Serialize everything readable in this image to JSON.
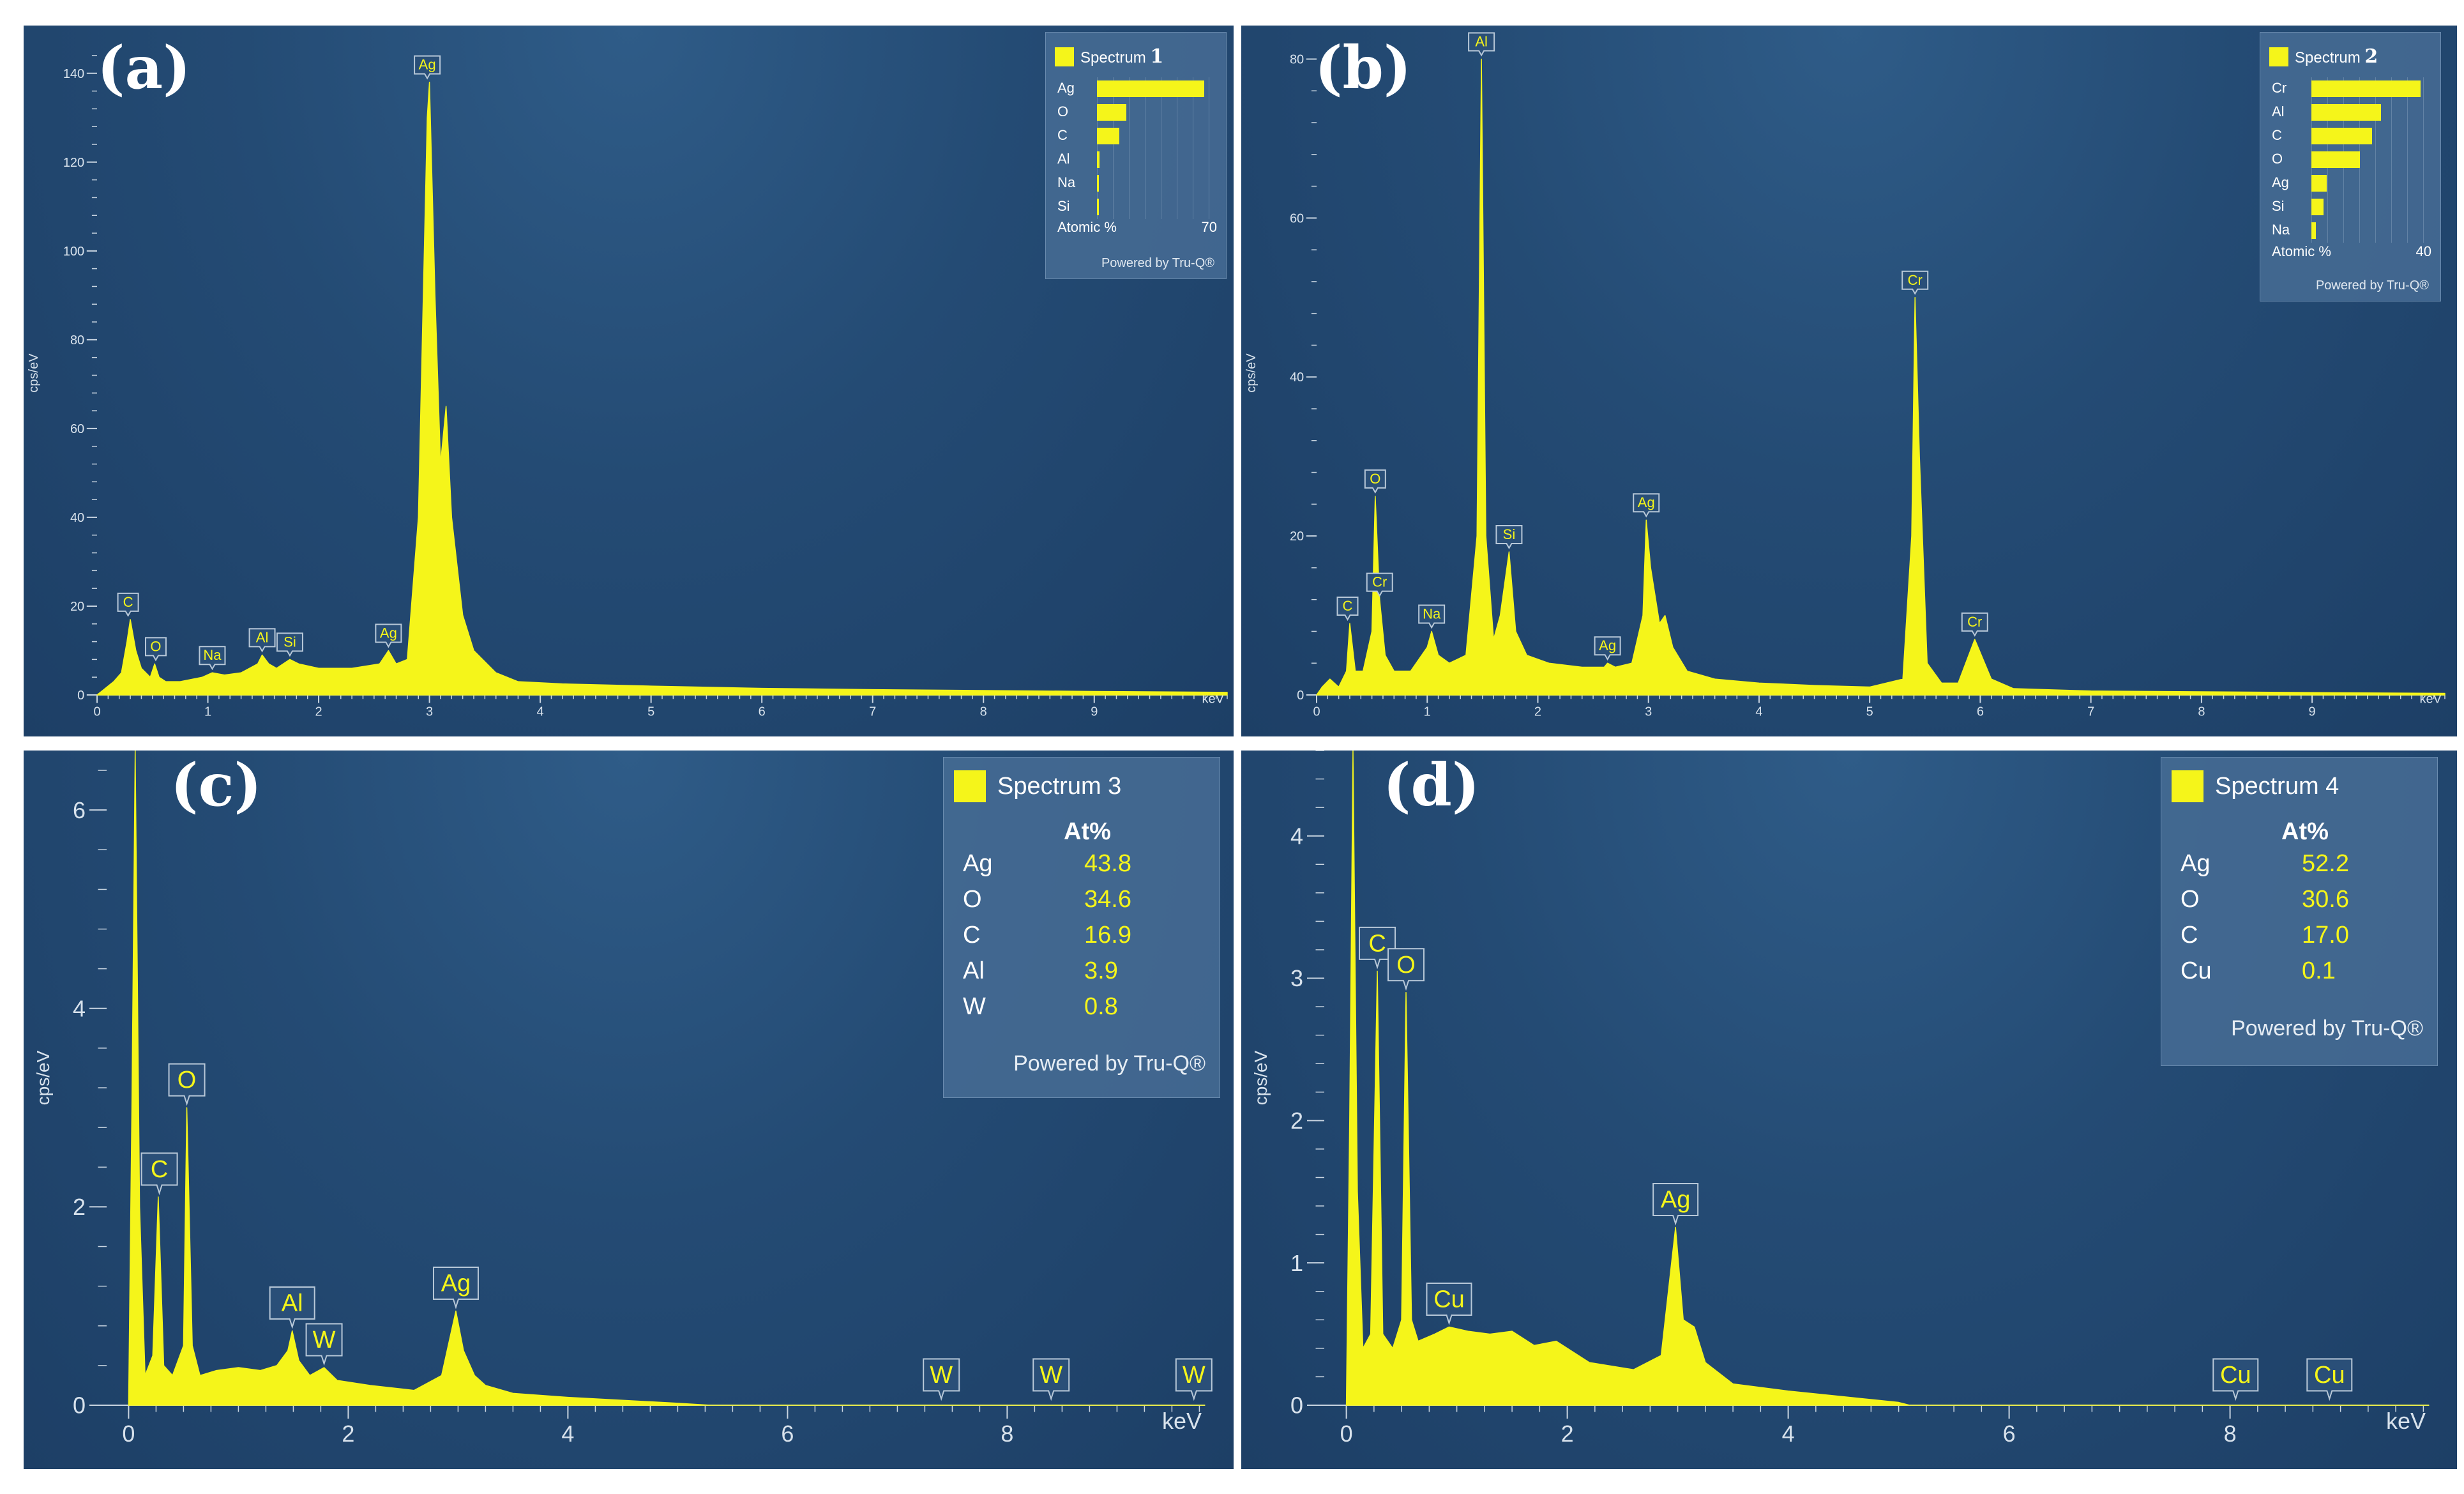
{
  "colors": {
    "spectrum": "#f5f51a",
    "background": "#244b74",
    "axis": "#c8d4e0"
  },
  "panels": [
    {
      "label": "(a)",
      "legend": {
        "title": "Spectrum",
        "number": "1",
        "style": "bars",
        "elements": [
          {
            "el": "Ag",
            "value": 62
          },
          {
            "el": "O",
            "value": 17
          },
          {
            "el": "C",
            "value": 13
          },
          {
            "el": "Al",
            "value": 1.5
          },
          {
            "el": "Na",
            "value": 1
          },
          {
            "el": "Si",
            "value": 1
          }
        ],
        "axis_label": "Atomic %",
        "axis_max": "70",
        "powered": "Powered by Tru-Q®"
      }
    },
    {
      "label": "(b)",
      "legend": {
        "title": "Spectrum",
        "number": "2",
        "style": "bars",
        "elements": [
          {
            "el": "Cr",
            "value": 36
          },
          {
            "el": "Al",
            "value": 23
          },
          {
            "el": "C",
            "value": 20
          },
          {
            "el": "O",
            "value": 16
          },
          {
            "el": "Ag",
            "value": 5
          },
          {
            "el": "Si",
            "value": 4
          },
          {
            "el": "Na",
            "value": 1.5
          }
        ],
        "axis_label": "Atomic %",
        "axis_max": "40",
        "powered": "Powered by Tru-Q®"
      }
    },
    {
      "label": "(c)",
      "legend": {
        "title": "Spectrum 3",
        "header": "At%",
        "style": "table",
        "rows": [
          {
            "el": "Ag",
            "val": "43.8"
          },
          {
            "el": "O",
            "val": "34.6"
          },
          {
            "el": "C",
            "val": "16.9"
          },
          {
            "el": "Al",
            "val": "3.9"
          },
          {
            "el": "W",
            "val": "0.8"
          }
        ],
        "powered": "Powered by Tru-Q®"
      }
    },
    {
      "label": "(d)",
      "legend": {
        "title": "Spectrum 4",
        "header": "At%",
        "style": "table",
        "rows": [
          {
            "el": "Ag",
            "val": "52.2"
          },
          {
            "el": "O",
            "val": "30.6"
          },
          {
            "el": "C",
            "val": "17.0"
          },
          {
            "el": "Cu",
            "val": "0.1"
          }
        ],
        "powered": "Powered by Tru-Q®"
      }
    }
  ],
  "chart_data": [
    {
      "type": "area",
      "title": "Spectrum 1",
      "xlabel": "keV",
      "ylabel": "cps/eV",
      "xlim": [
        0,
        10.2
      ],
      "ylim": [
        0,
        145
      ],
      "xticks": [
        0,
        1,
        2,
        3,
        4,
        5,
        6,
        7,
        8,
        9
      ],
      "yticks": [
        0,
        20,
        40,
        60,
        80,
        100,
        120,
        140
      ],
      "x": [
        0,
        0.05,
        0.15,
        0.22,
        0.27,
        0.3,
        0.35,
        0.4,
        0.48,
        0.52,
        0.56,
        0.62,
        0.75,
        0.95,
        1.04,
        1.15,
        1.3,
        1.45,
        1.49,
        1.55,
        1.62,
        1.74,
        1.82,
        2.0,
        2.3,
        2.55,
        2.63,
        2.7,
        2.8,
        2.9,
        2.98,
        3.0,
        3.05,
        3.1,
        3.15,
        3.2,
        3.3,
        3.4,
        3.6,
        3.8,
        4.2,
        5,
        6,
        7,
        8,
        9,
        10.2
      ],
      "y": [
        0,
        1,
        3,
        5,
        12,
        17,
        10,
        6,
        4,
        7,
        4,
        3,
        3,
        4,
        5,
        4.5,
        5,
        7,
        9,
        7,
        6,
        8,
        7,
        6,
        6,
        7,
        10,
        7,
        8,
        40,
        130,
        138,
        90,
        52,
        65,
        40,
        18,
        10,
        5,
        3,
        2.5,
        2,
        1.5,
        1.2,
        1,
        0.8,
        0.6
      ],
      "peaks": [
        {
          "label": "C",
          "x": 0.28,
          "y": 17
        },
        {
          "label": "O",
          "x": 0.53,
          "y": 7
        },
        {
          "label": "Na",
          "x": 1.04,
          "y": 5
        },
        {
          "label": "Al",
          "x": 1.49,
          "y": 9
        },
        {
          "label": "Si",
          "x": 1.74,
          "y": 8
        },
        {
          "label": "Ag",
          "x": 2.63,
          "y": 10
        },
        {
          "label": "Ag",
          "x": 2.98,
          "y": 138
        }
      ]
    },
    {
      "type": "area",
      "title": "Spectrum 2",
      "xlabel": "keV",
      "ylabel": "cps/eV",
      "xlim": [
        0,
        10.2
      ],
      "ylim": [
        0,
        81
      ],
      "xticks": [
        0,
        1,
        2,
        3,
        4,
        5,
        6,
        7,
        8,
        9
      ],
      "yticks": [
        0,
        20,
        40,
        60,
        80
      ],
      "x": [
        0,
        0.05,
        0.12,
        0.2,
        0.27,
        0.3,
        0.35,
        0.42,
        0.5,
        0.53,
        0.57,
        0.62,
        0.7,
        0.85,
        1.0,
        1.04,
        1.1,
        1.2,
        1.35,
        1.45,
        1.49,
        1.53,
        1.6,
        1.66,
        1.74,
        1.8,
        1.9,
        2.1,
        2.4,
        2.6,
        2.63,
        2.7,
        2.85,
        2.95,
        2.98,
        3.02,
        3.1,
        3.15,
        3.22,
        3.35,
        3.6,
        4.0,
        4.5,
        5.0,
        5.3,
        5.38,
        5.41,
        5.45,
        5.52,
        5.65,
        5.8,
        5.95,
        6.1,
        6.3,
        7,
        8,
        9,
        10.2
      ],
      "y": [
        0,
        1,
        2,
        1,
        3,
        9,
        3,
        3,
        8,
        25,
        12,
        5,
        3,
        3,
        6,
        8,
        5,
        4,
        5,
        20,
        80,
        20,
        7,
        10,
        18,
        8,
        5,
        4,
        3.5,
        3.5,
        4,
        3.5,
        4,
        10,
        22,
        16,
        9,
        10,
        6,
        3,
        2,
        1.5,
        1.2,
        1,
        2,
        20,
        50,
        30,
        4,
        1.5,
        1.5,
        7,
        2,
        0.8,
        0.5,
        0.4,
        0.3,
        0.2
      ],
      "peaks": [
        {
          "label": "C",
          "x": 0.28,
          "y": 9
        },
        {
          "label": "O",
          "x": 0.53,
          "y": 25
        },
        {
          "label": "Cr",
          "x": 0.57,
          "y": 12
        },
        {
          "label": "Na",
          "x": 1.04,
          "y": 8
        },
        {
          "label": "Al",
          "x": 1.49,
          "y": 80
        },
        {
          "label": "Si",
          "x": 1.74,
          "y": 18
        },
        {
          "label": "Ag",
          "x": 2.63,
          "y": 4
        },
        {
          "label": "Ag",
          "x": 2.98,
          "y": 22
        },
        {
          "label": "Cr",
          "x": 5.41,
          "y": 50
        },
        {
          "label": "Cr",
          "x": 5.95,
          "y": 7
        }
      ]
    },
    {
      "type": "area",
      "title": "Spectrum 3",
      "xlabel": "keV",
      "ylabel": "cps/eV",
      "xlim": [
        -0.2,
        9.8
      ],
      "ylim": [
        0,
        6.6
      ],
      "xticks": [
        0,
        2,
        4,
        6,
        8
      ],
      "yticks": [
        0,
        2,
        4,
        6
      ],
      "x": [
        0,
        0.03,
        0.06,
        0.1,
        0.15,
        0.22,
        0.27,
        0.32,
        0.4,
        0.5,
        0.53,
        0.58,
        0.65,
        0.8,
        1.0,
        1.2,
        1.35,
        1.45,
        1.49,
        1.55,
        1.65,
        1.78,
        1.9,
        2.2,
        2.6,
        2.85,
        2.98,
        3.05,
        3.15,
        3.25,
        3.5,
        4.0,
        4.5,
        5.0,
        5.3,
        9.8
      ],
      "y": [
        0,
        3,
        6.6,
        2,
        0.3,
        0.5,
        2.1,
        0.4,
        0.3,
        0.6,
        3.0,
        0.6,
        0.3,
        0.35,
        0.38,
        0.35,
        0.4,
        0.55,
        0.75,
        0.45,
        0.3,
        0.38,
        0.25,
        0.2,
        0.15,
        0.3,
        0.95,
        0.55,
        0.3,
        0.2,
        0.12,
        0.08,
        0.05,
        0.02,
        0,
        0
      ],
      "peaks": [
        {
          "label": "C",
          "x": 0.28,
          "y": 2.1
        },
        {
          "label": "O",
          "x": 0.53,
          "y": 3.0
        },
        {
          "label": "Al",
          "x": 1.49,
          "y": 0.75
        },
        {
          "label": "W",
          "x": 1.78,
          "y": 0.38
        },
        {
          "label": "Ag",
          "x": 2.98,
          "y": 0.95
        },
        {
          "label": "W",
          "x": 7.4,
          "y": 0
        },
        {
          "label": "W",
          "x": 8.4,
          "y": 0
        },
        {
          "label": "W",
          "x": 9.7,
          "y": 0
        }
      ]
    },
    {
      "type": "area",
      "title": "Spectrum 4",
      "xlabel": "keV",
      "ylabel": "cps/eV",
      "xlim": [
        -0.2,
        9.8
      ],
      "ylim": [
        0,
        4.6
      ],
      "xticks": [
        0,
        2,
        4,
        6,
        8
      ],
      "yticks": [
        0,
        1,
        2,
        3,
        4
      ],
      "x": [
        0,
        0.03,
        0.06,
        0.1,
        0.15,
        0.22,
        0.28,
        0.33,
        0.42,
        0.5,
        0.54,
        0.59,
        0.65,
        0.8,
        0.93,
        1.1,
        1.3,
        1.5,
        1.7,
        1.9,
        2.2,
        2.6,
        2.85,
        2.98,
        3.05,
        3.15,
        3.25,
        3.5,
        4.0,
        4.5,
        5.0,
        5.1,
        9.8
      ],
      "y": [
        0,
        2,
        4.6,
        1.5,
        0.4,
        0.5,
        3.05,
        0.5,
        0.4,
        0.6,
        2.9,
        0.6,
        0.45,
        0.5,
        0.55,
        0.52,
        0.5,
        0.52,
        0.42,
        0.45,
        0.3,
        0.25,
        0.35,
        1.25,
        0.6,
        0.55,
        0.3,
        0.15,
        0.1,
        0.06,
        0.02,
        0,
        0
      ],
      "peaks": [
        {
          "label": "C",
          "x": 0.28,
          "y": 3.05
        },
        {
          "label": "O",
          "x": 0.54,
          "y": 2.9
        },
        {
          "label": "Cu",
          "x": 0.93,
          "y": 0.55
        },
        {
          "label": "Ag",
          "x": 2.98,
          "y": 1.25
        },
        {
          "label": "Cu",
          "x": 8.05,
          "y": 0
        },
        {
          "label": "Cu",
          "x": 8.9,
          "y": 0
        }
      ]
    }
  ]
}
